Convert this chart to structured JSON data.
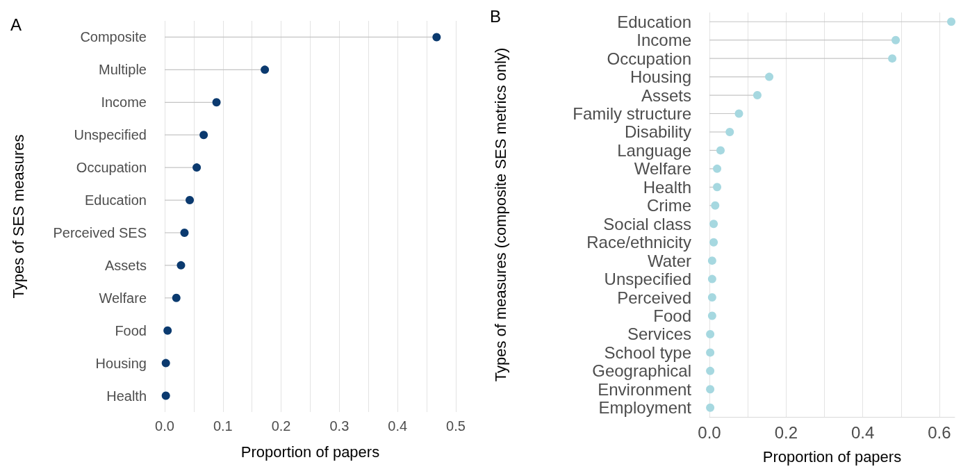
{
  "chart_data": [
    {
      "type": "lollipop",
      "title": "A",
      "xlabel": "Proportion of papers",
      "ylabel": "Types of SES measures",
      "orientation": "horizontal",
      "color": "#0b3a6f",
      "grid": "x",
      "categories": [
        "Composite",
        "Multiple",
        "Income",
        "Unspecified",
        "Occupation",
        "Education",
        "Perceived SES",
        "Assets",
        "Welfare",
        "Food",
        "Housing",
        "Health"
      ],
      "values": [
        0.467,
        0.172,
        0.089,
        0.067,
        0.055,
        0.043,
        0.034,
        0.028,
        0.02,
        0.005,
        0.002,
        0.002
      ],
      "xlim": [
        0,
        0.5
      ],
      "xticks": [
        {
          "value": 0,
          "label": "0.0"
        },
        {
          "value": 0.05,
          "label": null
        },
        {
          "value": 0.1,
          "label": "0.1"
        },
        {
          "value": 0.15,
          "label": null
        },
        {
          "value": 0.2,
          "label": "0.2"
        },
        {
          "value": 0.25,
          "label": null
        },
        {
          "value": 0.3,
          "label": "0.3"
        },
        {
          "value": 0.35,
          "label": null
        },
        {
          "value": 0.4,
          "label": "0.4"
        },
        {
          "value": 0.45,
          "label": null
        },
        {
          "value": 0.5,
          "label": "0.5"
        }
      ]
    },
    {
      "type": "lollipop",
      "title": "B",
      "xlabel": "Proportion of papers",
      "ylabel": "Types of measures (composite SES metrics only)",
      "orientation": "horizontal",
      "color": "#a6d8e0",
      "grid": "x",
      "categories": [
        "Education",
        "Income",
        "Occupation",
        "Housing",
        "Assets",
        "Family structure",
        "Disability",
        "Language",
        "Welfare",
        "Health",
        "Crime",
        "Social class",
        "Race/ethnicity",
        "Water",
        "Unspecified",
        "Perceived",
        "Food",
        "Services",
        "School type",
        "Geographical",
        "Environment",
        "Employment"
      ],
      "values": [
        0.631,
        0.486,
        0.477,
        0.156,
        0.125,
        0.077,
        0.053,
        0.029,
        0.02,
        0.02,
        0.015,
        0.011,
        0.011,
        0.007,
        0.007,
        0.007,
        0.007,
        0.002,
        0.002,
        0.002,
        0.002,
        0.002
      ],
      "xlim": [
        0,
        0.64
      ],
      "xticks": [
        {
          "value": 0,
          "label": "0.0"
        },
        {
          "value": 0.1,
          "label": null
        },
        {
          "value": 0.2,
          "label": "0.2"
        },
        {
          "value": 0.3,
          "label": null
        },
        {
          "value": 0.4,
          "label": "0.4"
        },
        {
          "value": 0.5,
          "label": null
        },
        {
          "value": 0.6,
          "label": "0.6"
        }
      ]
    }
  ]
}
